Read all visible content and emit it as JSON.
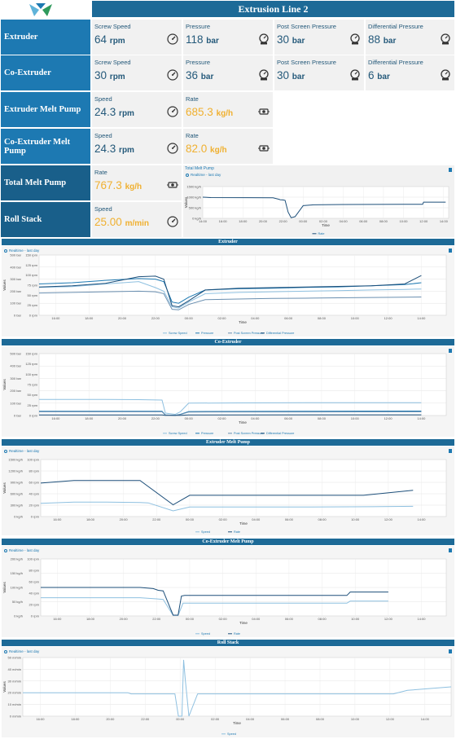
{
  "page": {
    "title": "Extrusion Line 2"
  },
  "rows": [
    {
      "label": "Extruder",
      "cards": [
        {
          "label": "Screw Speed",
          "value": "64",
          "unit": "rpm",
          "icon": "gauge-icon"
        },
        {
          "label": "Pressure",
          "value": "118",
          "unit": "bar",
          "icon": "pressure-icon"
        },
        {
          "label": "Post Screen Pressure",
          "value": "30",
          "unit": "bar",
          "icon": "pressure-icon"
        },
        {
          "label": "Differential Pressure",
          "value": "88",
          "unit": "bar",
          "icon": "pressure-icon"
        }
      ]
    },
    {
      "label": "Co-Extruder",
      "cards": [
        {
          "label": "Screw Speed",
          "value": "30",
          "unit": "rpm",
          "icon": "gauge-icon"
        },
        {
          "label": "Pressure",
          "value": "36",
          "unit": "bar",
          "icon": "pressure-icon"
        },
        {
          "label": "Post Screen Pressure",
          "value": "30",
          "unit": "bar",
          "icon": "pressure-icon"
        },
        {
          "label": "Differential Pressure",
          "value": "6",
          "unit": "bar",
          "icon": "pressure-icon"
        }
      ]
    },
    {
      "label": "Extruder Melt Pump",
      "cards": [
        {
          "label": "Speed",
          "value": "24.3",
          "unit": "rpm",
          "icon": "gauge-icon"
        },
        {
          "label": "Rate",
          "value": "685.3",
          "unit": "kg/h",
          "icon": "pump-icon",
          "highlight": "#f0b030"
        }
      ]
    },
    {
      "label": "Co-Extruder Melt Pump",
      "cards": [
        {
          "label": "Speed",
          "value": "24.3",
          "unit": "rpm",
          "icon": "gauge-icon"
        },
        {
          "label": "Rate",
          "value": "82.0",
          "unit": "kg/h",
          "icon": "pump-icon",
          "highlight": "#f0b030"
        }
      ]
    },
    {
      "label": "Total Melt Pump",
      "cards": [
        {
          "label": "Rate",
          "value": "767.3",
          "unit": "kg/h",
          "icon": "pump-icon",
          "highlight": "#f0b030"
        }
      ]
    },
    {
      "label": "Roll Stack",
      "cards": [
        {
          "label": "Speed",
          "value": "25.00",
          "unit": "m/min",
          "icon": "gauge-icon",
          "highlight": "#f0b030"
        }
      ]
    }
  ],
  "realtime_label": "Realtime - last day",
  "x_ticks": [
    "16:00",
    "18:00",
    "20:00",
    "22:00",
    "00:00",
    "02:00",
    "04:00",
    "06:00",
    "08:00",
    "10:00",
    "12:00",
    "14:00"
  ],
  "x_title": "Time",
  "y_title": "Values",
  "chart_data": [
    {
      "id": "total-melt-pump",
      "title": "Total Melt Pump",
      "type": "line",
      "y_ticks": [
        "1500 kg/h",
        "1000 kg/h",
        "500 kg/h",
        "0 kg/h"
      ],
      "ylim": [
        0,
        1500
      ],
      "x_ticks": [
        "14:00",
        "16:00",
        "18:00",
        "20:00",
        "22:00",
        "00:00",
        "02:00",
        "04:00",
        "06:00",
        "08:00",
        "10:00",
        "12:00",
        "14:00"
      ],
      "series": [
        {
          "name": "Rate",
          "color": "#1d4f7a",
          "x": [
            0,
            0.8,
            4.5,
            7,
            7.6,
            7.7,
            8.0,
            8.2,
            8.5,
            8.8,
            9.2,
            10,
            11,
            14,
            20,
            21.9,
            22.0,
            24.2
          ],
          "y": [
            1000,
            980,
            975,
            970,
            900,
            880,
            870,
            850,
            300,
            30,
            80,
            600,
            640,
            655,
            660,
            665,
            765,
            767
          ]
        }
      ]
    },
    {
      "id": "extruder",
      "title": "Extruder",
      "type": "line",
      "y_ticks": [
        "500 bar",
        "400 bar",
        "300 bar",
        "200 bar",
        "100 bar",
        "0 bar"
      ],
      "y_ticks_inner": [
        "150 rpm",
        "125 rpm",
        "100 rpm",
        "75 rpm",
        "50 rpm",
        "25 rpm",
        "0 rpm"
      ],
      "ylim": [
        0,
        500
      ],
      "series": [
        {
          "name": "Screw Speed",
          "color": "#8ec0e0",
          "x": [
            0,
            2,
            4,
            6,
            7,
            7.5,
            8,
            8.4,
            9,
            10,
            12,
            14,
            16,
            18,
            20,
            22,
            23
          ],
          "y": [
            232,
            238,
            260,
            280,
            230,
            200,
            70,
            60,
            110,
            180,
            190,
            195,
            200,
            205,
            210,
            215,
            218
          ]
        },
        {
          "name": "Pressure",
          "color": "#1d79b2",
          "x": [
            0,
            2,
            4,
            6,
            7,
            7.5,
            8,
            8.4,
            9,
            10,
            12,
            14,
            16,
            18,
            20,
            22,
            23
          ],
          "y": [
            260,
            270,
            290,
            305,
            300,
            280,
            110,
            100,
            150,
            210,
            220,
            225,
            232,
            236,
            245,
            255,
            270
          ]
        },
        {
          "name": "Post Screen Pressure",
          "color": "#6a8fb0",
          "x": [
            0,
            2,
            4,
            6,
            7,
            7.5,
            8,
            8.4,
            9,
            10,
            12,
            14,
            16,
            18,
            20,
            22,
            23
          ],
          "y": [
            185,
            190,
            195,
            200,
            195,
            180,
            50,
            45,
            90,
            130,
            135,
            140,
            142,
            145,
            148,
            150,
            152
          ]
        },
        {
          "name": "Differential Pressure",
          "color": "#1d4f7a",
          "x": [
            0,
            2,
            4,
            6,
            7,
            7.5,
            8,
            8.4,
            9,
            10,
            12,
            14,
            16,
            18,
            20,
            22,
            23
          ],
          "y": [
            235,
            245,
            265,
            320,
            325,
            300,
            80,
            70,
            120,
            210,
            225,
            230,
            235,
            240,
            245,
            260,
            330
          ]
        }
      ]
    },
    {
      "id": "co-extruder",
      "title": "Co-Extruder",
      "type": "line",
      "y_ticks": [
        "500 bar",
        "400 bar",
        "300 bar",
        "200 bar",
        "100 bar",
        "0 bar"
      ],
      "y_ticks_inner": [
        "150 rpm",
        "125 rpm",
        "100 rpm",
        "75 rpm",
        "50 rpm",
        "25 rpm",
        "0 rpm"
      ],
      "ylim": [
        0,
        500
      ],
      "series": [
        {
          "name": "Screw Speed",
          "color": "#8ec0e0",
          "x": [
            0,
            4,
            6,
            7.4,
            7.6,
            8.2,
            8.5,
            9,
            12,
            16,
            20,
            23
          ],
          "y": [
            130,
            130,
            128,
            125,
            20,
            10,
            30,
            100,
            102,
            103,
            104,
            104
          ]
        },
        {
          "name": "Pressure",
          "color": "#1d79b2",
          "x": [
            0,
            4,
            7.4,
            7.6,
            8.2,
            8.5,
            9,
            16,
            23
          ],
          "y": [
            35,
            35,
            34,
            5,
            2,
            10,
            32,
            34,
            36
          ]
        },
        {
          "name": "Post Screen Pressure",
          "color": "#6a8fb0",
          "x": [
            0,
            4,
            7.4,
            7.6,
            8.2,
            8.5,
            9,
            16,
            23
          ],
          "y": [
            30,
            30,
            30,
            4,
            2,
            8,
            28,
            29,
            30
          ]
        },
        {
          "name": "Differential Pressure",
          "color": "#1d4f7a",
          "x": [
            0,
            7.4,
            7.6,
            8.5,
            9,
            23
          ],
          "y": [
            5,
            5,
            1,
            1,
            5,
            6
          ]
        }
      ]
    },
    {
      "id": "extruder-melt-pump",
      "title": "Extruder Melt Pump",
      "type": "line",
      "y_ticks": [
        "1500 kg/h",
        "1200 kg/h",
        "900 kg/h",
        "600 kg/h",
        "300 kg/h",
        "0 kg/h"
      ],
      "y_ticks_inner": [
        "100 rpm",
        "80 rpm",
        "60 rpm",
        "40 rpm",
        "20 rpm",
        "0 rpm"
      ],
      "ylim": [
        0,
        1500
      ],
      "series": [
        {
          "name": "Speed",
          "color": "#8ec0e0",
          "x": [
            0,
            2,
            4,
            6,
            6.5,
            8,
            9,
            12,
            16,
            20,
            22.5
          ],
          "y": [
            350,
            380,
            380,
            370,
            360,
            150,
            250,
            250,
            250,
            260,
            270
          ]
        },
        {
          "name": "Rate",
          "color": "#1d4f7a",
          "x": [
            0,
            2,
            4,
            6,
            8,
            9,
            12,
            16,
            19.5,
            22.5
          ],
          "y": [
            880,
            950,
            950,
            950,
            310,
            560,
            560,
            560,
            560,
            690
          ]
        }
      ]
    },
    {
      "id": "co-extruder-melt-pump",
      "title": "Co-Extruder Melt Pump",
      "type": "line",
      "y_ticks": [
        "200 kg/h",
        "150 kg/h",
        "100 kg/h",
        "50 kg/h",
        "0 kg/h"
      ],
      "y_ticks_inner": [
        "100 rpm",
        "80 rpm",
        "60 rpm",
        "40 rpm",
        "20 rpm",
        "0 rpm"
      ],
      "ylim": [
        0,
        200
      ],
      "series": [
        {
          "name": "Speed",
          "color": "#8ec0e0",
          "x": [
            0,
            6,
            7,
            7.4,
            8.0,
            8.3,
            8.6,
            9,
            12,
            18.5,
            18.7,
            21
          ],
          "y": [
            64,
            64,
            60,
            58,
            2,
            2,
            45,
            45,
            45,
            45,
            52,
            52
          ]
        },
        {
          "name": "Rate",
          "color": "#1d4f7a",
          "x": [
            0,
            6,
            6.8,
            7.1,
            7.4,
            8.0,
            8.3,
            8.5,
            8.7,
            12,
            18.5,
            18.7,
            21
          ],
          "y": [
            100,
            100,
            96,
            90,
            88,
            3,
            3,
            70,
            72,
            72,
            72,
            84,
            84
          ]
        }
      ]
    },
    {
      "id": "roll-stack",
      "title": "Roll Stack",
      "type": "line",
      "y_ticks": [
        "50 m/min",
        "40 m/min",
        "30 m/min",
        "20 m/min",
        "10 m/min",
        "0 m/min"
      ],
      "ylim": [
        0,
        50
      ],
      "x_ticks": [
        "16:00",
        "18:00",
        "20:00",
        "22:00",
        "00:00",
        "02:00",
        "04:00",
        "06:00",
        "08:00",
        "10:00",
        "12:00",
        "14:00"
      ],
      "series": [
        {
          "name": "Speed",
          "color": "#8ec0e0",
          "x": [
            0,
            6,
            6.2,
            8.7,
            8.9,
            9.1,
            9.2,
            9.3,
            9.5,
            10,
            12,
            16,
            20,
            21.2,
            22,
            24.5
          ],
          "y": [
            20,
            20,
            19,
            19,
            0,
            0,
            48,
            30,
            0,
            19,
            19,
            19,
            19,
            19,
            22,
            25
          ]
        }
      ]
    }
  ]
}
